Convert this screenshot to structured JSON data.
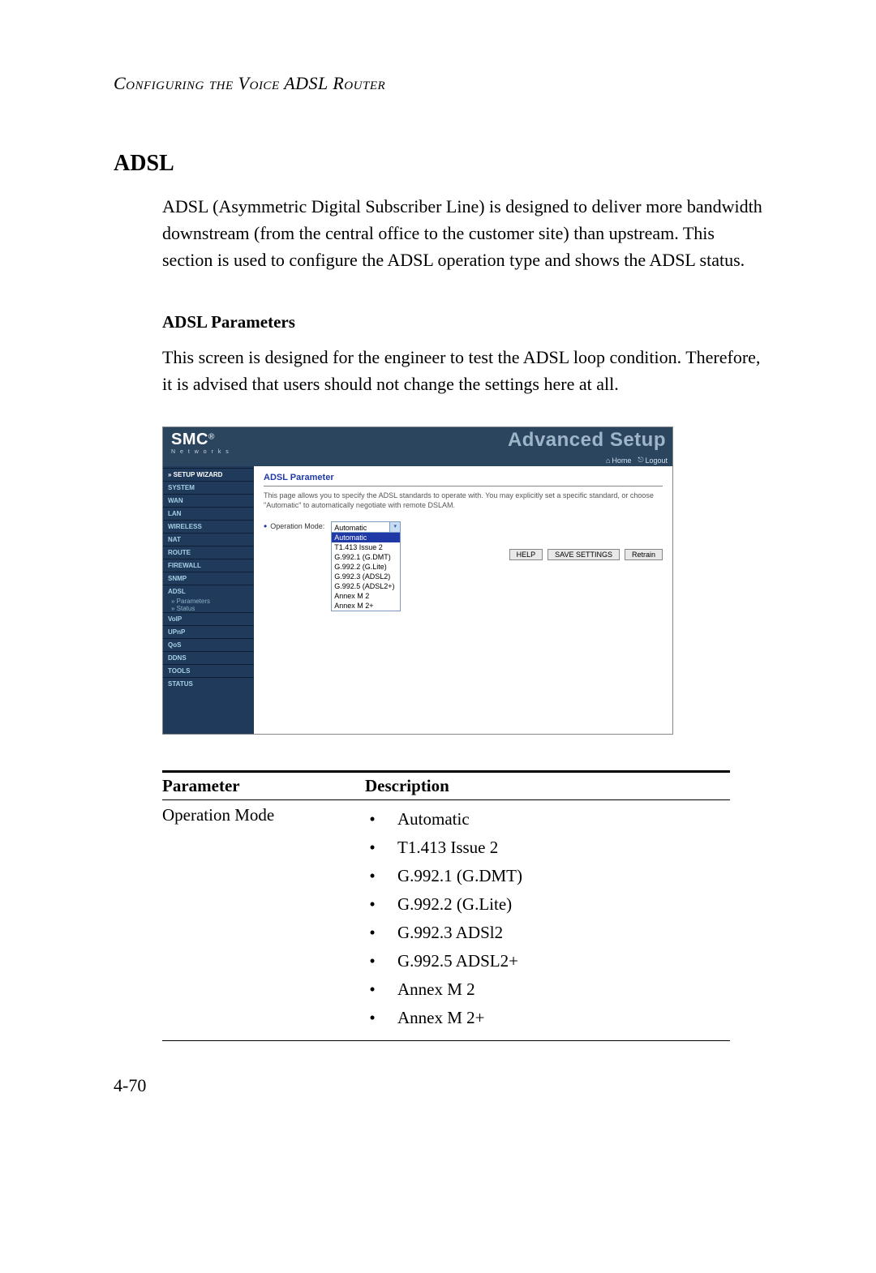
{
  "header": "Configuring the Voice ADSL Router",
  "section_title": "ADSL",
  "intro": "ADSL (Asymmetric Digital Subscriber Line) is designed to deliver more bandwidth downstream (from the central office to the customer site) than upstream. This section is used to configure the ADSL operation type and shows the ADSL status.",
  "sub_heading": "ADSL Parameters",
  "sub_text": "This screen is designed for the engineer to test the ADSL loop condition. Therefore, it is advised that users should not change the settings here at all.",
  "screenshot": {
    "logo_main": "SMC",
    "logo_reg": "®",
    "logo_sub": "N e t w o r k s",
    "adv_title": "Advanced Setup",
    "home": "Home",
    "logout": "Logout",
    "sidebar": {
      "wizard": "» SETUP WIZARD",
      "items": [
        "SYSTEM",
        "WAN",
        "LAN",
        "WIRELESS",
        "NAT",
        "ROUTE",
        "FIREWALL",
        "SNMP",
        "ADSL"
      ],
      "adsl_subs": [
        "» Parameters",
        "» Status"
      ],
      "items2": [
        "VoIP",
        "UPnP",
        "QoS",
        "DDNS",
        "TOOLS",
        "STATUS"
      ]
    },
    "panel": {
      "title": "ADSL Parameter",
      "desc": "This page allows you to specify the ADSL standards to operate with. You may explicitly set a specific standard, or choose \"Automatic\" to automatically negotiate with remote DSLAM.",
      "op_label": "Operation Mode:",
      "selected": "Automatic",
      "options": [
        "Automatic",
        "T1.413 Issue 2",
        "G.992.1 (G.DMT)",
        "G.992.2 (G.Lite)",
        "G.992.3 (ADSL2)",
        "G.992.5 (ADSL2+)",
        "Annex M 2",
        "Annex M 2+"
      ],
      "buttons": {
        "help": "HELP",
        "save": "SAVE SETTINGS",
        "retrain": "Retrain"
      }
    }
  },
  "table": {
    "col1": "Parameter",
    "col2": "Description",
    "param_name": "Operation Mode",
    "values": [
      "Automatic",
      "T1.413 Issue 2",
      "G.992.1 (G.DMT)",
      "G.992.2 (G.Lite)",
      "G.992.3 ADSl2",
      "G.992.5 ADSL2+",
      "Annex M 2",
      "Annex M 2+"
    ]
  },
  "page_num": "4-70"
}
